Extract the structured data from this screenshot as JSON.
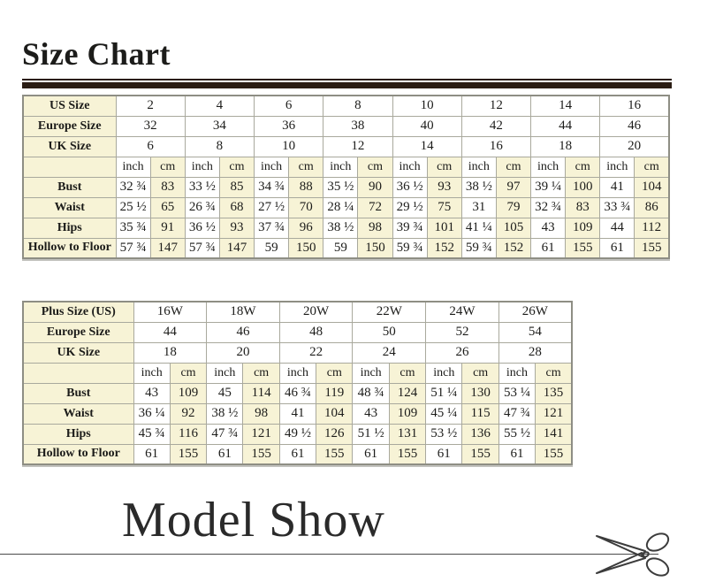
{
  "page": {
    "title": "Size Chart",
    "footer_title": "Model Show"
  },
  "colors": {
    "cream_cell": "#f7f3d6",
    "table_border": "#8e8e84",
    "title_rule": "#2b1d14",
    "text": "#1c1c1a"
  },
  "standard_table": {
    "size_rows": [
      {
        "label": "US Size",
        "values": [
          "2",
          "4",
          "6",
          "8",
          "10",
          "12",
          "14",
          "16"
        ]
      },
      {
        "label": "Europe Size",
        "values": [
          "32",
          "34",
          "36",
          "38",
          "40",
          "42",
          "44",
          "46"
        ]
      },
      {
        "label": "UK Size",
        "values": [
          "6",
          "8",
          "10",
          "12",
          "14",
          "16",
          "18",
          "20"
        ]
      }
    ],
    "unit_labels": [
      "inch",
      "cm"
    ],
    "measure_rows": [
      {
        "label": "Bust",
        "values": [
          "32 ¾",
          "83",
          "33 ½",
          "85",
          "34 ¾",
          "88",
          "35 ½",
          "90",
          "36 ½",
          "93",
          "38 ½",
          "97",
          "39 ¼",
          "100",
          "41",
          "104"
        ]
      },
      {
        "label": "Waist",
        "values": [
          "25 ½",
          "65",
          "26 ¾",
          "68",
          "27 ½",
          "70",
          "28 ¼",
          "72",
          "29 ½",
          "75",
          "31",
          "79",
          "32 ¾",
          "83",
          "33 ¾",
          "86"
        ]
      },
      {
        "label": "Hips",
        "values": [
          "35 ¾",
          "91",
          "36 ½",
          "93",
          "37 ¾",
          "96",
          "38 ½",
          "98",
          "39 ¾",
          "101",
          "41 ¼",
          "105",
          "43",
          "109",
          "44",
          "112"
        ]
      },
      {
        "label": "Hollow to Floor",
        "values": [
          "57 ¾",
          "147",
          "57 ¾",
          "147",
          "59",
          "150",
          "59",
          "150",
          "59 ¾",
          "152",
          "59 ¾",
          "152",
          "61",
          "155",
          "61",
          "155"
        ]
      }
    ]
  },
  "plus_table": {
    "size_rows": [
      {
        "label": "Plus Size (US)",
        "values": [
          "16W",
          "18W",
          "20W",
          "22W",
          "24W",
          "26W"
        ]
      },
      {
        "label": "Europe Size",
        "values": [
          "44",
          "46",
          "48",
          "50",
          "52",
          "54"
        ]
      },
      {
        "label": "UK Size",
        "values": [
          "18",
          "20",
          "22",
          "24",
          "26",
          "28"
        ]
      }
    ],
    "unit_labels": [
      "inch",
      "cm"
    ],
    "measure_rows": [
      {
        "label": "Bust",
        "values": [
          "43",
          "109",
          "45",
          "114",
          "46 ¾",
          "119",
          "48 ¾",
          "124",
          "51 ¼",
          "130",
          "53 ¼",
          "135"
        ]
      },
      {
        "label": "Waist",
        "values": [
          "36 ¼",
          "92",
          "38 ½",
          "98",
          "41",
          "104",
          "43",
          "109",
          "45 ¼",
          "115",
          "47 ¾",
          "121"
        ]
      },
      {
        "label": "Hips",
        "values": [
          "45 ¾",
          "116",
          "47 ¾",
          "121",
          "49 ½",
          "126",
          "51 ½",
          "131",
          "53 ½",
          "136",
          "55 ½",
          "141"
        ]
      },
      {
        "label": "Hollow to Floor",
        "values": [
          "61",
          "155",
          "61",
          "155",
          "61",
          "155",
          "61",
          "155",
          "61",
          "155",
          "61",
          "155"
        ]
      }
    ]
  }
}
